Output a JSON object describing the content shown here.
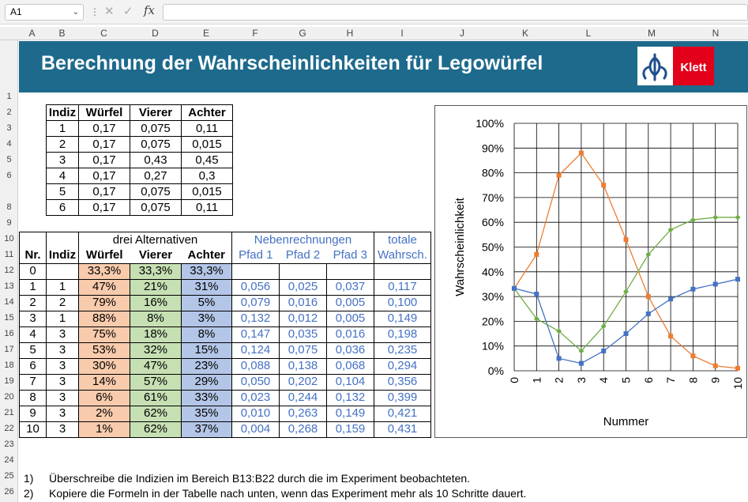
{
  "formula_bar": {
    "name_box": "A1",
    "fx": "fx",
    "formula": ""
  },
  "columns": [
    "A",
    "B",
    "C",
    "D",
    "E",
    "F",
    "G",
    "H",
    "I",
    "J",
    "K",
    "L",
    "M",
    "N"
  ],
  "rows": [
    "1",
    "2",
    "3",
    "4",
    "5",
    "6",
    "8",
    "9",
    "10",
    "11",
    "12",
    "13",
    "14",
    "15",
    "16",
    "17",
    "18",
    "19",
    "20",
    "21",
    "22",
    "23",
    "24",
    "25",
    "26"
  ],
  "banner": {
    "title": "Berechnung der Wahrscheinlichkeiten für Legowürfel",
    "logo_text": "Klett",
    "bg": "#1e6a8c",
    "logo_red": "#e2001a"
  },
  "prob_table": {
    "headers": [
      "Indiz",
      "Würfel",
      "Vierer",
      "Achter"
    ],
    "rows": [
      [
        "1",
        "0,17",
        "0,075",
        "0,11"
      ],
      [
        "2",
        "0,17",
        "0,075",
        "0,015"
      ],
      [
        "3",
        "0,17",
        "0,43",
        "0,45"
      ],
      [
        "4",
        "0,17",
        "0,27",
        "0,3"
      ],
      [
        "5",
        "0,17",
        "0,075",
        "0,015"
      ],
      [
        "6",
        "0,17",
        "0,075",
        "0,11"
      ]
    ]
  },
  "main_table": {
    "group_alternatives": "drei Alternativen",
    "group_neben": "Nebenrechnungen",
    "group_totale": "totale",
    "headers": [
      "Nr.",
      "Indiz",
      "Würfel",
      "Vierer",
      "Achter",
      "Pfad 1",
      "Pfad  2",
      "Pfad 3",
      "Wahrsch."
    ],
    "rows": [
      [
        "0",
        "",
        "33,3%",
        "33,3%",
        "33,3%",
        "",
        "",
        "",
        ""
      ],
      [
        "1",
        "1",
        "47%",
        "21%",
        "31%",
        "0,056",
        "0,025",
        "0,037",
        "0,117"
      ],
      [
        "2",
        "2",
        "79%",
        "16%",
        "5%",
        "0,079",
        "0,016",
        "0,005",
        "0,100"
      ],
      [
        "3",
        "1",
        "88%",
        "8%",
        "3%",
        "0,132",
        "0,012",
        "0,005",
        "0,149"
      ],
      [
        "4",
        "3",
        "75%",
        "18%",
        "8%",
        "0,147",
        "0,035",
        "0,016",
        "0,198"
      ],
      [
        "5",
        "3",
        "53%",
        "32%",
        "15%",
        "0,124",
        "0,075",
        "0,036",
        "0,235"
      ],
      [
        "6",
        "3",
        "30%",
        "47%",
        "23%",
        "0,088",
        "0,138",
        "0,068",
        "0,294"
      ],
      [
        "7",
        "3",
        "14%",
        "57%",
        "29%",
        "0,050",
        "0,202",
        "0,104",
        "0,356"
      ],
      [
        "8",
        "3",
        "6%",
        "61%",
        "33%",
        "0,023",
        "0,244",
        "0,132",
        "0,399"
      ],
      [
        "9",
        "3",
        "2%",
        "62%",
        "35%",
        "0,010",
        "0,263",
        "0,149",
        "0,421"
      ],
      [
        "10",
        "3",
        "1%",
        "62%",
        "37%",
        "0,004",
        "0,268",
        "0,159",
        "0,431"
      ]
    ],
    "colors": {
      "peach": "#f8cbad",
      "green": "#c6e0b4",
      "lavender": "#b4c6e7",
      "blue_text": "#4472c4"
    }
  },
  "chart_data": {
    "type": "line",
    "x": [
      0,
      1,
      2,
      3,
      4,
      5,
      6,
      7,
      8,
      9,
      10
    ],
    "xlabel": "Nummer",
    "ylabel": "Wahrscheinlichkeit",
    "ylim": [
      0,
      1
    ],
    "ytick_labels": [
      "0%",
      "10%",
      "20%",
      "30%",
      "40%",
      "50%",
      "60%",
      "70%",
      "80%",
      "90%",
      "100%"
    ],
    "grid": true,
    "legend": "none",
    "series": [
      {
        "color": "#ed7d31",
        "marker": "square",
        "values": [
          0.333,
          0.47,
          0.79,
          0.88,
          0.75,
          0.53,
          0.3,
          0.14,
          0.06,
          0.02,
          0.01
        ]
      },
      {
        "color": "#70ad47",
        "marker": "diamond",
        "values": [
          0.333,
          0.21,
          0.16,
          0.08,
          0.18,
          0.32,
          0.47,
          0.57,
          0.61,
          0.62,
          0.62
        ]
      },
      {
        "color": "#4472c4",
        "marker": "square",
        "values": [
          0.333,
          0.31,
          0.05,
          0.03,
          0.08,
          0.15,
          0.23,
          0.29,
          0.33,
          0.35,
          0.37
        ]
      }
    ]
  },
  "notes": [
    {
      "num": "1)",
      "text": "Überschreibe die Indizien im Bereich B13:B22 durch die im Experiment beobachteten."
    },
    {
      "num": "2)",
      "text": "Kopiere die Formeln in der Tabelle nach unten, wenn das Experiment mehr als 10 Schritte dauert."
    }
  ]
}
